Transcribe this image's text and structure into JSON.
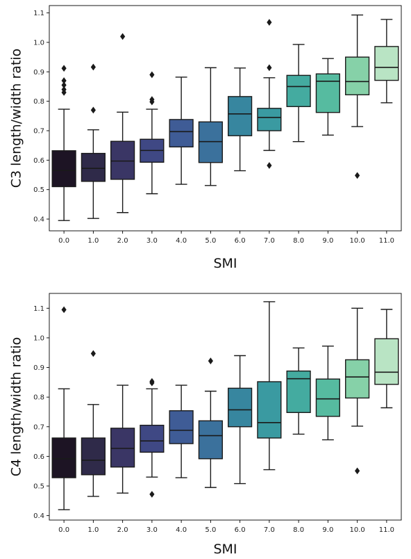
{
  "chart_data": [
    {
      "type": "box",
      "xlabel": "SMI",
      "ylabel": "C3 length/width ratio",
      "ylim": [
        0.36,
        1.125
      ],
      "yticks": [
        "0.4",
        "0.5",
        "0.6",
        "0.7",
        "0.8",
        "0.9",
        "1.0",
        "1.1"
      ],
      "categories": [
        "0.0",
        "1.0",
        "2.0",
        "3.0",
        "4.0",
        "5.0",
        "6.0",
        "7.0",
        "8.0",
        "9.0",
        "10.0",
        "11.0"
      ],
      "boxes": [
        {
          "whislo": 0.395,
          "q1": 0.51,
          "med": 0.565,
          "q3": 0.632,
          "whishi": 0.773,
          "fliers": [
            0.83,
            0.84,
            0.855,
            0.87,
            0.912
          ]
        },
        {
          "whislo": 0.402,
          "q1": 0.528,
          "med": 0.572,
          "q3": 0.623,
          "whishi": 0.703,
          "fliers": [
            0.77,
            0.916
          ]
        },
        {
          "whislo": 0.422,
          "q1": 0.535,
          "med": 0.597,
          "q3": 0.664,
          "whishi": 0.763,
          "fliers": [
            1.02
          ]
        },
        {
          "whislo": 0.486,
          "q1": 0.593,
          "med": 0.633,
          "q3": 0.671,
          "whishi": 0.773,
          "fliers": [
            0.798,
            0.806,
            0.89
          ]
        },
        {
          "whislo": 0.518,
          "q1": 0.645,
          "med": 0.697,
          "q3": 0.738,
          "whishi": 0.882,
          "fliers": []
        },
        {
          "whislo": 0.514,
          "q1": 0.592,
          "med": 0.663,
          "q3": 0.73,
          "whishi": 0.914,
          "fliers": []
        },
        {
          "whislo": 0.564,
          "q1": 0.683,
          "med": 0.757,
          "q3": 0.816,
          "whishi": 0.913,
          "fliers": []
        },
        {
          "whislo": 0.633,
          "q1": 0.7,
          "med": 0.745,
          "q3": 0.776,
          "whishi": 0.88,
          "fliers": [
            0.582,
            0.914,
            1.068
          ]
        },
        {
          "whislo": 0.663,
          "q1": 0.782,
          "med": 0.85,
          "q3": 0.888,
          "whishi": 0.993,
          "fliers": []
        },
        {
          "whislo": 0.685,
          "q1": 0.762,
          "med": 0.868,
          "q3": 0.893,
          "whishi": 0.945,
          "fliers": []
        },
        {
          "whislo": 0.714,
          "q1": 0.822,
          "med": 0.867,
          "q3": 0.95,
          "whishi": 1.093,
          "fliers": [
            0.548
          ]
        },
        {
          "whislo": 0.795,
          "q1": 0.871,
          "med": 0.915,
          "q3": 0.986,
          "whishi": 1.078,
          "fliers": []
        }
      ]
    },
    {
      "type": "box",
      "xlabel": "SMI",
      "ylabel": "C4 length/width ratio",
      "ylim": [
        0.385,
        1.15
      ],
      "yticks": [
        "0.4",
        "0.5",
        "0.6",
        "0.7",
        "0.8",
        "0.9",
        "1.0",
        "1.1"
      ],
      "categories": [
        "0.0",
        "1.0",
        "2.0",
        "3.0",
        "4.0",
        "5.0",
        "6.0",
        "7.0",
        "8.0",
        "9.0",
        "10.0",
        "11.0"
      ],
      "boxes": [
        {
          "whislo": 0.42,
          "q1": 0.528,
          "med": 0.592,
          "q3": 0.662,
          "whishi": 0.828,
          "fliers": [
            1.095
          ]
        },
        {
          "whislo": 0.465,
          "q1": 0.538,
          "med": 0.587,
          "q3": 0.662,
          "whishi": 0.775,
          "fliers": [
            0.947
          ]
        },
        {
          "whislo": 0.476,
          "q1": 0.564,
          "med": 0.627,
          "q3": 0.695,
          "whishi": 0.84,
          "fliers": []
        },
        {
          "whislo": 0.53,
          "q1": 0.614,
          "med": 0.652,
          "q3": 0.705,
          "whishi": 0.828,
          "fliers": [
            0.472,
            0.848,
            0.853
          ]
        },
        {
          "whislo": 0.528,
          "q1": 0.643,
          "med": 0.688,
          "q3": 0.754,
          "whishi": 0.84,
          "fliers": []
        },
        {
          "whislo": 0.495,
          "q1": 0.592,
          "med": 0.67,
          "q3": 0.72,
          "whishi": 0.82,
          "fliers": [
            0.922
          ]
        },
        {
          "whislo": 0.508,
          "q1": 0.7,
          "med": 0.757,
          "q3": 0.83,
          "whishi": 0.94,
          "fliers": []
        },
        {
          "whislo": 0.555,
          "q1": 0.662,
          "med": 0.714,
          "q3": 0.852,
          "whishi": 1.122,
          "fliers": []
        },
        {
          "whislo": 0.675,
          "q1": 0.748,
          "med": 0.862,
          "q3": 0.888,
          "whishi": 0.966,
          "fliers": []
        },
        {
          "whislo": 0.656,
          "q1": 0.735,
          "med": 0.794,
          "q3": 0.861,
          "whishi": 0.972,
          "fliers": []
        },
        {
          "whislo": 0.702,
          "q1": 0.797,
          "med": 0.868,
          "q3": 0.926,
          "whishi": 1.1,
          "fliers": [
            0.551
          ]
        },
        {
          "whislo": 0.764,
          "q1": 0.843,
          "med": 0.884,
          "q3": 0.997,
          "whishi": 1.096,
          "fliers": []
        }
      ]
    }
  ],
  "palette": [
    "#1d1424",
    "#2f2a49",
    "#3a3665",
    "#3f4884",
    "#3f5c96",
    "#3b719c",
    "#37869f",
    "#3a9aa1",
    "#44aba0",
    "#56bba0",
    "#86d1a8",
    "#b9e4c4"
  ]
}
